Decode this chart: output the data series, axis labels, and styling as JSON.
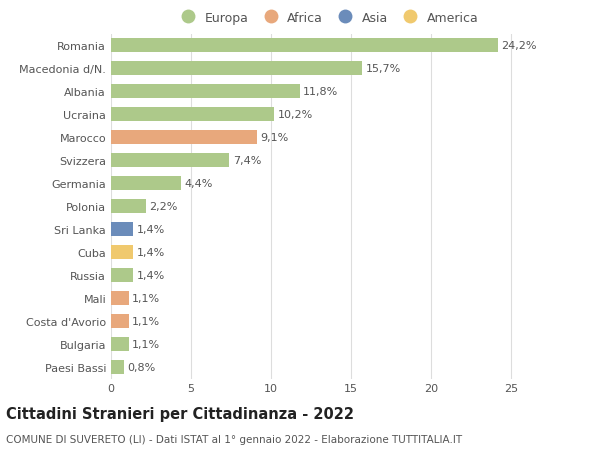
{
  "categories": [
    "Romania",
    "Macedonia d/N.",
    "Albania",
    "Ucraina",
    "Marocco",
    "Svizzera",
    "Germania",
    "Polonia",
    "Sri Lanka",
    "Cuba",
    "Russia",
    "Mali",
    "Costa d'Avorio",
    "Bulgaria",
    "Paesi Bassi"
  ],
  "values": [
    24.2,
    15.7,
    11.8,
    10.2,
    9.1,
    7.4,
    4.4,
    2.2,
    1.4,
    1.4,
    1.4,
    1.1,
    1.1,
    1.1,
    0.8
  ],
  "labels": [
    "24,2%",
    "15,7%",
    "11,8%",
    "10,2%",
    "9,1%",
    "7,4%",
    "4,4%",
    "2,2%",
    "1,4%",
    "1,4%",
    "1,4%",
    "1,1%",
    "1,1%",
    "1,1%",
    "0,8%"
  ],
  "continents": [
    "Europa",
    "Europa",
    "Europa",
    "Europa",
    "Africa",
    "Europa",
    "Europa",
    "Europa",
    "Asia",
    "America",
    "Europa",
    "Africa",
    "Africa",
    "Europa",
    "Europa"
  ],
  "continent_colors": {
    "Europa": "#adc98a",
    "Africa": "#e8a87c",
    "Asia": "#6b8cba",
    "America": "#f0c96e"
  },
  "legend_order": [
    "Europa",
    "Africa",
    "Asia",
    "America"
  ],
  "title": "Cittadini Stranieri per Cittadinanza - 2022",
  "subtitle": "COMUNE DI SUVERETO (LI) - Dati ISTAT al 1° gennaio 2022 - Elaborazione TUTTITALIA.IT",
  "xlim": [
    0,
    27
  ],
  "xticks": [
    0,
    5,
    10,
    15,
    20,
    25
  ],
  "background_color": "#ffffff",
  "grid_color": "#dddddd",
  "bar_height": 0.65,
  "label_fontsize": 8.0,
  "title_fontsize": 10.5,
  "subtitle_fontsize": 7.5,
  "tick_fontsize": 8.0,
  "legend_fontsize": 9.0,
  "text_color": "#555555",
  "title_color": "#222222"
}
